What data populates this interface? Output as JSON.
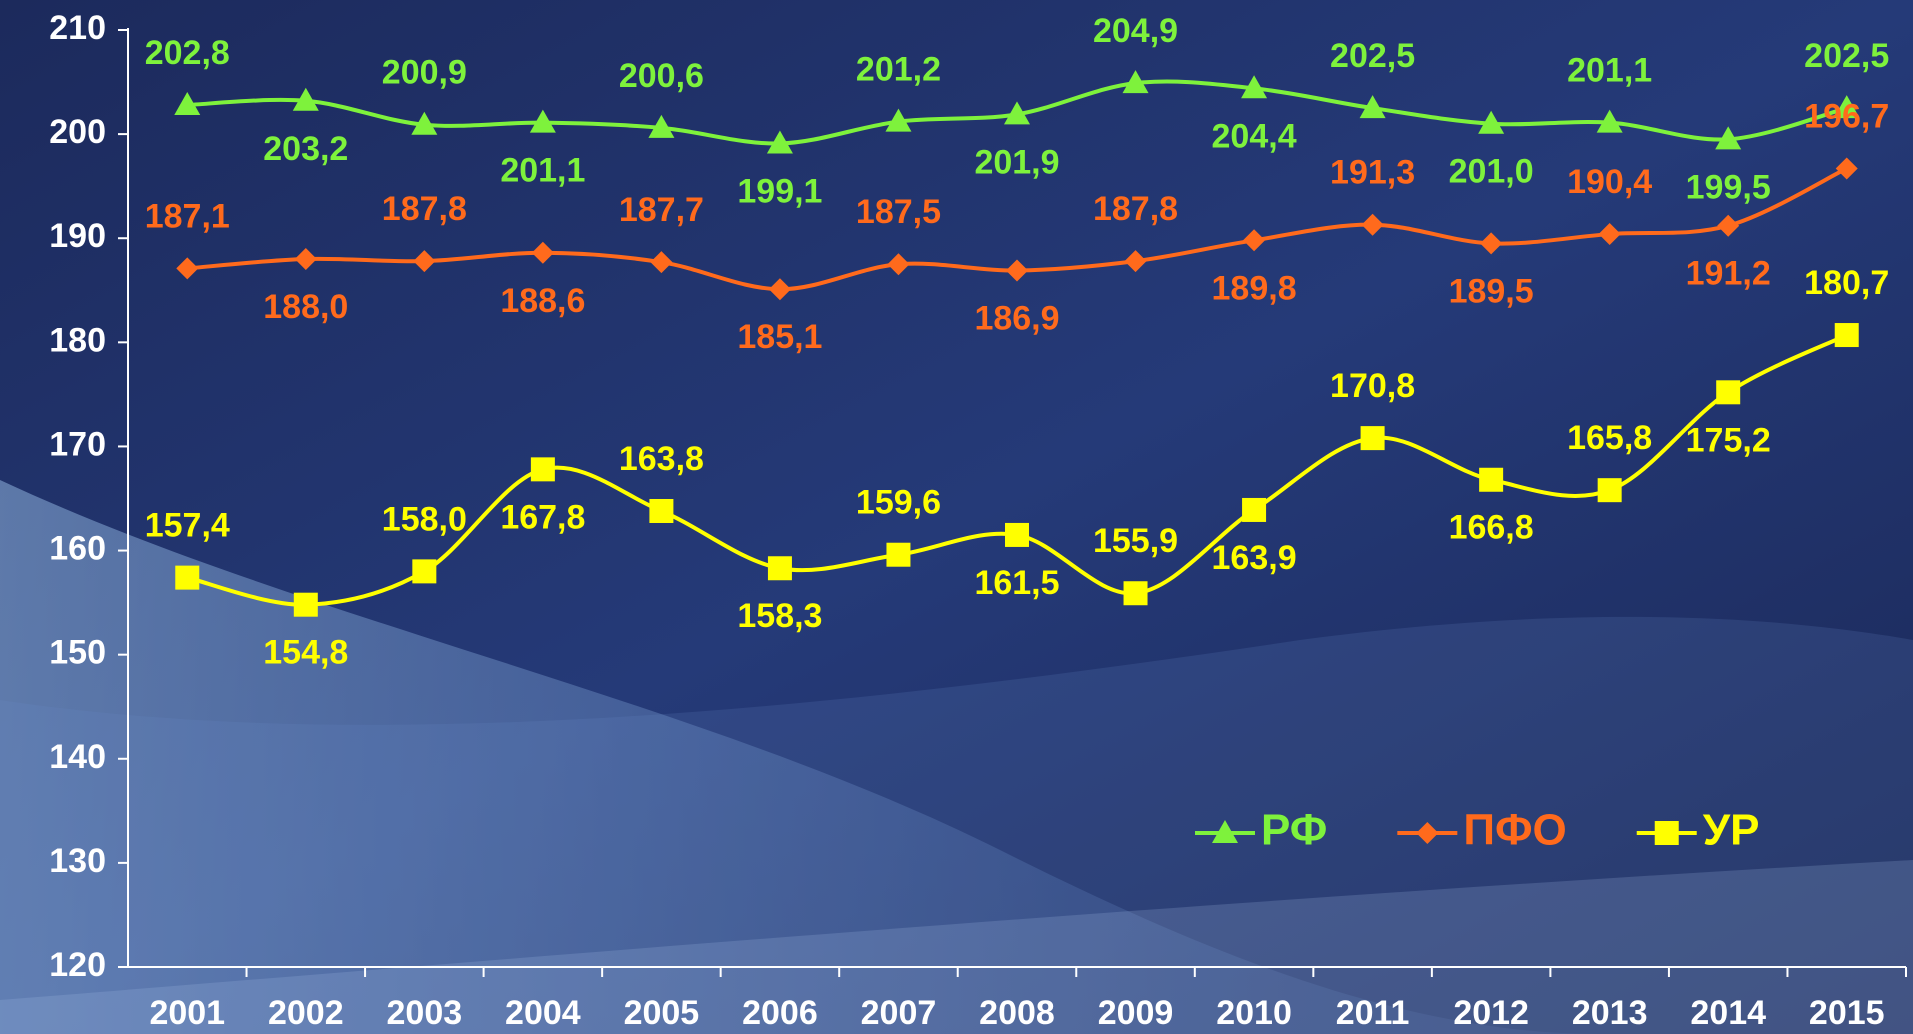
{
  "chart_data": {
    "type": "line",
    "categories": [
      "2001",
      "2002",
      "2003",
      "2004",
      "2005",
      "2006",
      "2007",
      "2008",
      "2009",
      "2010",
      "2011",
      "2012",
      "2013",
      "2014",
      "2015"
    ],
    "series": [
      {
        "name": "РФ",
        "color": "#7ef23c",
        "marker": "triangle",
        "values": [
          202.8,
          203.2,
          200.9,
          201.1,
          200.6,
          199.1,
          201.2,
          201.9,
          204.9,
          204.4,
          202.5,
          201.0,
          201.1,
          199.5,
          202.5
        ],
        "value_labels": [
          "202,8",
          "203,2",
          "200,9",
          "201,1",
          "200,6",
          "199,1",
          "201,2",
          "201,9",
          "204,9",
          "204,4",
          "202,5",
          "201,0",
          "201,1",
          "199,5",
          "202,5"
        ]
      },
      {
        "name": "ПФО",
        "color": "#ff6a1c",
        "marker": "diamond",
        "values": [
          187.1,
          188.0,
          187.8,
          188.6,
          187.7,
          185.1,
          187.5,
          186.9,
          187.8,
          189.8,
          191.3,
          189.5,
          190.4,
          191.2,
          196.7
        ],
        "value_labels": [
          "187,1",
          "188,0",
          "187,8",
          "188,6",
          "187,7",
          "185,1",
          "187,5",
          "186,9",
          "187,8",
          "189,8",
          "191,3",
          "189,5",
          "190,4",
          "191,2",
          "196,7"
        ]
      },
      {
        "name": "УР",
        "color": "#ffff00",
        "marker": "square",
        "values": [
          157.4,
          154.8,
          158.0,
          167.8,
          163.8,
          158.3,
          159.6,
          161.5,
          155.9,
          163.9,
          170.8,
          166.8,
          165.8,
          175.2,
          180.7
        ],
        "value_labels": [
          "157,4",
          "154,8",
          "158,0",
          "167,8",
          "163,8",
          "158,3",
          "159,6",
          "161,5",
          "155,9",
          "163,9",
          "170,8",
          "166,8",
          "165,8",
          "175,2",
          "180,7"
        ]
      }
    ],
    "ylim": [
      120,
      210
    ],
    "yticks": [
      120,
      130,
      140,
      150,
      160,
      170,
      180,
      190,
      200,
      210
    ],
    "legend": "lower right"
  }
}
